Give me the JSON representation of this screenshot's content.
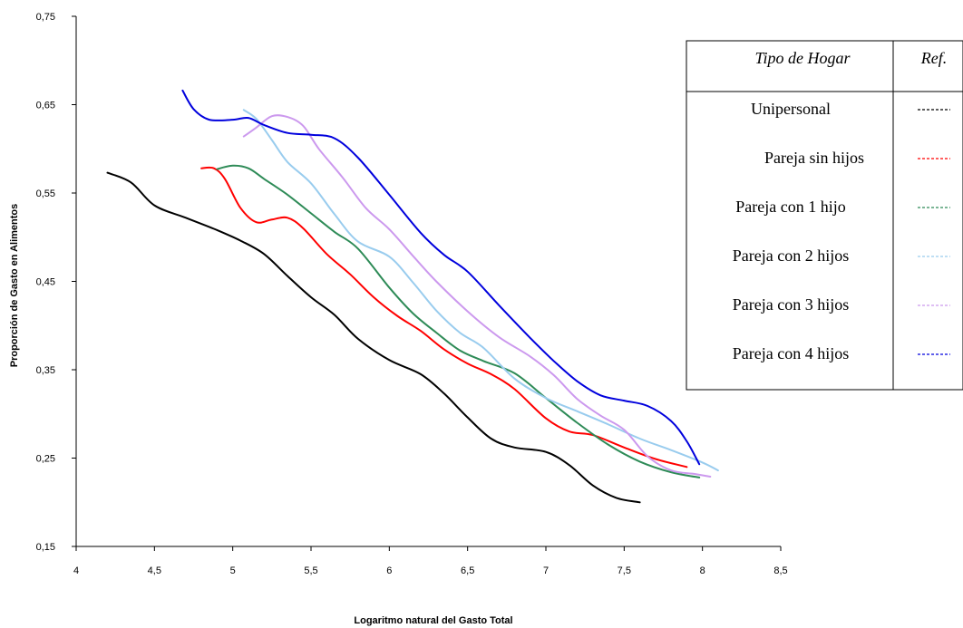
{
  "chart_data": {
    "type": "line",
    "title": "",
    "xlabel": "Logaritmo natural del Gasto Total",
    "ylabel": "Proporción de Gasto en Alimentos",
    "xlim": [
      4,
      8.5
    ],
    "ylim": [
      0.15,
      0.75
    ],
    "x_ticks": [
      "4",
      "4,5",
      "5",
      "5,5",
      "6",
      "6,5",
      "7",
      "7,5",
      "8",
      "8,5"
    ],
    "y_ticks": [
      "0,15",
      "0,25",
      "0,35",
      "0,45",
      "0,55",
      "0,65",
      "0,75"
    ],
    "grid": false,
    "legend": {
      "placement": "right",
      "header_type": "Tipo de Hogar",
      "header_ref": "Ref."
    },
    "series": [
      {
        "name": "Unipersonal",
        "color": "#000000",
        "x": [
          4.2,
          4.35,
          4.5,
          4.7,
          4.9,
          5.05,
          5.2,
          5.35,
          5.5,
          5.65,
          5.8,
          6.0,
          6.2,
          6.35,
          6.5,
          6.65,
          6.8,
          7.0,
          7.15,
          7.3,
          7.45,
          7.6
        ],
        "y": [
          0.573,
          0.562,
          0.536,
          0.522,
          0.508,
          0.496,
          0.481,
          0.456,
          0.432,
          0.412,
          0.385,
          0.361,
          0.345,
          0.323,
          0.296,
          0.272,
          0.262,
          0.257,
          0.242,
          0.219,
          0.205,
          0.2
        ]
      },
      {
        "name": "Pareja sin hijos",
        "color": "#ff0000",
        "x": [
          4.8,
          4.88,
          4.95,
          5.05,
          5.15,
          5.25,
          5.35,
          5.45,
          5.6,
          5.75,
          5.9,
          6.05,
          6.2,
          6.35,
          6.5,
          6.65,
          6.8,
          7.0,
          7.15,
          7.3,
          7.5,
          7.7,
          7.9
        ],
        "y": [
          0.578,
          0.578,
          0.566,
          0.533,
          0.517,
          0.52,
          0.522,
          0.51,
          0.481,
          0.458,
          0.432,
          0.411,
          0.394,
          0.373,
          0.357,
          0.345,
          0.328,
          0.295,
          0.28,
          0.276,
          0.262,
          0.249,
          0.24
        ]
      },
      {
        "name": "Pareja con 1 hijo",
        "color": "#2e8b57",
        "x": [
          4.9,
          5.0,
          5.1,
          5.2,
          5.35,
          5.5,
          5.65,
          5.8,
          6.0,
          6.15,
          6.3,
          6.45,
          6.6,
          6.8,
          7.0,
          7.2,
          7.4,
          7.6,
          7.8,
          7.98
        ],
        "y": [
          0.577,
          0.581,
          0.578,
          0.566,
          0.548,
          0.527,
          0.506,
          0.487,
          0.443,
          0.414,
          0.392,
          0.372,
          0.36,
          0.346,
          0.318,
          0.29,
          0.265,
          0.246,
          0.234,
          0.228
        ]
      },
      {
        "name": "Pareja con 2 hijos",
        "color": "#99ccee",
        "x": [
          5.07,
          5.15,
          5.25,
          5.35,
          5.5,
          5.65,
          5.8,
          6.0,
          6.15,
          6.3,
          6.45,
          6.6,
          6.8,
          7.0,
          7.2,
          7.4,
          7.6,
          7.8,
          8.0,
          8.1
        ],
        "y": [
          0.644,
          0.634,
          0.61,
          0.585,
          0.561,
          0.526,
          0.495,
          0.478,
          0.449,
          0.417,
          0.392,
          0.375,
          0.34,
          0.318,
          0.303,
          0.288,
          0.272,
          0.259,
          0.245,
          0.236
        ]
      },
      {
        "name": "Pareja con 3 hijos",
        "color": "#cc99ee",
        "x": [
          5.07,
          5.15,
          5.25,
          5.35,
          5.45,
          5.55,
          5.7,
          5.85,
          6.0,
          6.15,
          6.3,
          6.5,
          6.7,
          6.9,
          7.05,
          7.2,
          7.35,
          7.5,
          7.65,
          7.8,
          7.95,
          8.05
        ],
        "y": [
          0.614,
          0.624,
          0.637,
          0.636,
          0.626,
          0.6,
          0.568,
          0.533,
          0.509,
          0.479,
          0.45,
          0.416,
          0.387,
          0.365,
          0.344,
          0.317,
          0.298,
          0.282,
          0.252,
          0.236,
          0.232,
          0.229
        ]
      },
      {
        "name": "Pareja con 4 hijos",
        "color": "#0000dd",
        "x": [
          4.68,
          4.75,
          4.85,
          5.0,
          5.1,
          5.2,
          5.35,
          5.5,
          5.65,
          5.8,
          6.0,
          6.2,
          6.35,
          6.5,
          6.7,
          6.9,
          7.05,
          7.2,
          7.35,
          7.5,
          7.65,
          7.8,
          7.9,
          7.98
        ],
        "y": [
          0.666,
          0.645,
          0.633,
          0.633,
          0.635,
          0.627,
          0.618,
          0.616,
          0.612,
          0.59,
          0.548,
          0.505,
          0.48,
          0.461,
          0.423,
          0.386,
          0.36,
          0.337,
          0.321,
          0.315,
          0.309,
          0.292,
          0.269,
          0.243
        ]
      }
    ]
  }
}
